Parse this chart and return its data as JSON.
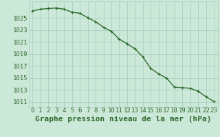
{
  "x": [
    0,
    1,
    2,
    3,
    4,
    5,
    6,
    7,
    8,
    9,
    10,
    11,
    12,
    13,
    14,
    15,
    16,
    17,
    18,
    19,
    20,
    21,
    22,
    23
  ],
  "y": [
    1026.2,
    1026.5,
    1026.6,
    1026.7,
    1026.5,
    1026.0,
    1025.8,
    1025.1,
    1024.4,
    1023.5,
    1022.8,
    1021.5,
    1020.7,
    1019.9,
    1018.5,
    1016.6,
    1015.7,
    1015.0,
    1013.5,
    1013.4,
    1013.3,
    1012.8,
    1011.9,
    1011.1
  ],
  "line_color": "#2d6a2d",
  "marker": "+",
  "bg_color": "#cce8d8",
  "grid_color": "#aacfbf",
  "ylabel_ticks": [
    1011,
    1013,
    1015,
    1017,
    1019,
    1021,
    1023,
    1025
  ],
  "ylim": [
    1010.2,
    1027.8
  ],
  "xlim": [
    -0.5,
    23.5
  ],
  "xlabel": "Graphe pression niveau de la mer (hPa)",
  "xlabel_color": "#2d6a2d",
  "tick_label_color": "#2d6a2d",
  "tick_fontsize": 6.5,
  "xlabel_fontsize": 8,
  "linewidth": 1.0,
  "markersize": 3.5,
  "markeredgewidth": 0.9
}
